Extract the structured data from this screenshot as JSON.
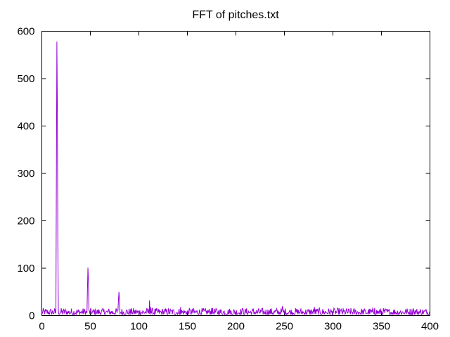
{
  "chart_data": {
    "type": "line",
    "title": "FFT of pitches.txt",
    "xlabel": "",
    "ylabel": "",
    "xlim": [
      0,
      400
    ],
    "ylim": [
      0,
      600
    ],
    "xticks": [
      "0",
      "50",
      "100",
      "150",
      "200",
      "250",
      "300",
      "350",
      "400"
    ],
    "yticks": [
      "0",
      "100",
      "200",
      "300",
      "400",
      "500",
      "600"
    ],
    "grid": false,
    "legend": "none",
    "series": [
      {
        "color": "#9400d3",
        "peaks": [
          {
            "x": 15,
            "y": 295
          },
          {
            "x": 15.5,
            "y": 578
          },
          {
            "x": 16,
            "y": 435
          },
          {
            "x": 16.5,
            "y": 145
          },
          {
            "x": 47,
            "y": 55
          },
          {
            "x": 47.5,
            "y": 101
          },
          {
            "x": 48,
            "y": 75
          },
          {
            "x": 79,
            "y": 35
          },
          {
            "x": 79.5,
            "y": 50
          },
          {
            "x": 80,
            "y": 30
          },
          {
            "x": 111,
            "y": 32
          },
          {
            "x": 112,
            "y": 18
          },
          {
            "x": 143,
            "y": 18
          },
          {
            "x": 175,
            "y": 16
          },
          {
            "x": 207,
            "y": 15
          },
          {
            "x": 248,
            "y": 20
          },
          {
            "x": 281,
            "y": 18
          },
          {
            "x": 343,
            "y": 16
          },
          {
            "x": 383,
            "y": 15
          }
        ],
        "noise_level": [
          2,
          16
        ]
      }
    ]
  }
}
